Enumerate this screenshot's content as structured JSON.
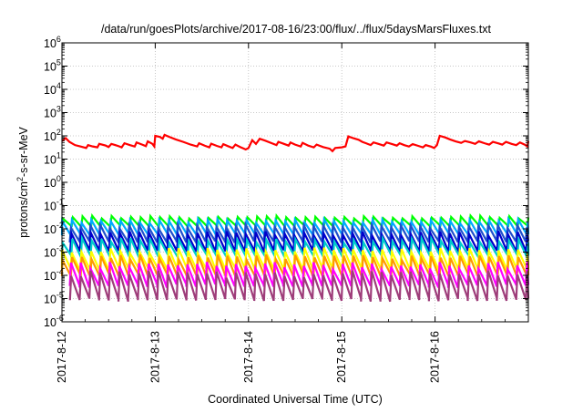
{
  "chart_data": {
    "type": "line",
    "title": "/data/run/goesPlots/archive/2017-08-16/23:00/flux/../flux/5daysMarsFluxes.txt",
    "xlabel": "Coordinated Universal Time (UTC)",
    "ylabel_prefix": "protons/cm",
    "ylabel_sup": "2",
    "ylabel_suffix": "-s-sr-MeV",
    "y_scale": "log",
    "ylim": [
      1e-06,
      1000000.0
    ],
    "y_ticks": [
      {
        "value": 1e-06,
        "base": "10",
        "exp": "-6"
      },
      {
        "value": 1e-05,
        "base": "10",
        "exp": "-5"
      },
      {
        "value": 0.0001,
        "base": "10",
        "exp": "-4"
      },
      {
        "value": 0.001,
        "base": "10",
        "exp": "-3"
      },
      {
        "value": 0.01,
        "base": "10",
        "exp": "-2"
      },
      {
        "value": 0.1,
        "base": "10",
        "exp": "-1"
      },
      {
        "value": 1,
        "base": "10",
        "exp": "0"
      },
      {
        "value": 10.0,
        "base": "10",
        "exp": "1"
      },
      {
        "value": 100.0,
        "base": "10",
        "exp": "2"
      },
      {
        "value": 1000.0,
        "base": "10",
        "exp": "3"
      },
      {
        "value": 10000.0,
        "base": "10",
        "exp": "4"
      },
      {
        "value": 100000.0,
        "base": "10",
        "exp": "5"
      },
      {
        "value": 1000000.0,
        "base": "10",
        "exp": "6"
      }
    ],
    "x_range_days": [
      0,
      5
    ],
    "x_ticks": [
      {
        "day": 0,
        "label": "2017-8-12"
      },
      {
        "day": 1,
        "label": "2017-8-13"
      },
      {
        "day": 2,
        "label": "2017-8-14"
      },
      {
        "day": 3,
        "label": "2017-8-15"
      },
      {
        "day": 4,
        "label": "2017-8-16"
      }
    ],
    "grid": true,
    "series": [
      {
        "color": "#ff0000",
        "points": [
          [
            0,
            60
          ],
          [
            0.04,
            80
          ],
          [
            0.08,
            55
          ],
          [
            0.14,
            40
          ],
          [
            0.2,
            35
          ],
          [
            0.26,
            30
          ],
          [
            0.28,
            40
          ],
          [
            0.33,
            35
          ],
          [
            0.38,
            32
          ],
          [
            0.4,
            45
          ],
          [
            0.47,
            38
          ],
          [
            0.5,
            33
          ],
          [
            0.53,
            45
          ],
          [
            0.6,
            37
          ],
          [
            0.64,
            32
          ],
          [
            0.67,
            48
          ],
          [
            0.73,
            40
          ],
          [
            0.78,
            35
          ],
          [
            0.8,
            52
          ],
          [
            0.86,
            42
          ],
          [
            0.9,
            36
          ],
          [
            0.92,
            58
          ],
          [
            0.97,
            45
          ],
          [
            0.99,
            35
          ],
          [
            1.0,
            100
          ],
          [
            1.05,
            90
          ],
          [
            1.08,
            75
          ],
          [
            1.1,
            110
          ],
          [
            1.15,
            90
          ],
          [
            1.22,
            70
          ],
          [
            1.3,
            55
          ],
          [
            1.38,
            42
          ],
          [
            1.45,
            35
          ],
          [
            1.47,
            48
          ],
          [
            1.53,
            38
          ],
          [
            1.58,
            32
          ],
          [
            1.6,
            46
          ],
          [
            1.66,
            37
          ],
          [
            1.71,
            32
          ],
          [
            1.73,
            44
          ],
          [
            1.78,
            36
          ],
          [
            1.83,
            30
          ],
          [
            1.86,
            42
          ],
          [
            1.91,
            33
          ],
          [
            1.97,
            26
          ],
          [
            2.0,
            30
          ],
          [
            2.04,
            65
          ],
          [
            2.08,
            45
          ],
          [
            2.12,
            75
          ],
          [
            2.18,
            62
          ],
          [
            2.25,
            48
          ],
          [
            2.3,
            40
          ],
          [
            2.32,
            55
          ],
          [
            2.38,
            45
          ],
          [
            2.43,
            38
          ],
          [
            2.45,
            52
          ],
          [
            2.5,
            42
          ],
          [
            2.56,
            35
          ],
          [
            2.58,
            50
          ],
          [
            2.64,
            38
          ],
          [
            2.7,
            32
          ],
          [
            2.73,
            42
          ],
          [
            2.8,
            33
          ],
          [
            2.87,
            28
          ],
          [
            2.9,
            22
          ],
          [
            2.93,
            30
          ],
          [
            3.0,
            32
          ],
          [
            3.04,
            35
          ],
          [
            3.07,
            95
          ],
          [
            3.12,
            80
          ],
          [
            3.18,
            68
          ],
          [
            3.22,
            55
          ],
          [
            3.26,
            48
          ],
          [
            3.31,
            40
          ],
          [
            3.34,
            52
          ],
          [
            3.4,
            44
          ],
          [
            3.45,
            38
          ],
          [
            3.48,
            52
          ],
          [
            3.54,
            44
          ],
          [
            3.59,
            38
          ],
          [
            3.62,
            48
          ],
          [
            3.67,
            40
          ],
          [
            3.72,
            35
          ],
          [
            3.76,
            44
          ],
          [
            3.82,
            37
          ],
          [
            3.87,
            32
          ],
          [
            3.9,
            40
          ],
          [
            3.96,
            34
          ],
          [
            3.99,
            30
          ],
          [
            4.02,
            40
          ],
          [
            4.05,
            100
          ],
          [
            4.11,
            85
          ],
          [
            4.16,
            70
          ],
          [
            4.22,
            58
          ],
          [
            4.28,
            50
          ],
          [
            4.32,
            60
          ],
          [
            4.38,
            52
          ],
          [
            4.43,
            45
          ],
          [
            4.47,
            58
          ],
          [
            4.53,
            48
          ],
          [
            4.58,
            42
          ],
          [
            4.62,
            55
          ],
          [
            4.68,
            47
          ],
          [
            4.72,
            42
          ],
          [
            4.76,
            55
          ],
          [
            4.82,
            45
          ],
          [
            4.87,
            40
          ],
          [
            4.91,
            52
          ],
          [
            4.96,
            42
          ],
          [
            4.99,
            35
          ],
          [
            5.0,
            60
          ]
        ]
      },
      {
        "color": "#00ff00",
        "sawtooth": {
          "base": 0.013,
          "top": 0.032,
          "amp_var": 0.15,
          "phase": 0.0
        }
      },
      {
        "color": "#00aaff",
        "sawtooth": {
          "base": 0.0055,
          "top": 0.022,
          "amp_var": 0.2,
          "phase": 0.01
        }
      },
      {
        "color": "#1f4fcc",
        "sawtooth": {
          "base": 0.0028,
          "top": 0.013,
          "amp_var": 0.2,
          "phase": 0.02
        }
      },
      {
        "color": "#0000cc",
        "sawtooth": {
          "base": 0.0011,
          "top": 0.0065,
          "amp_var": 0.25,
          "phase": 0.015
        }
      },
      {
        "color": "#00cccc",
        "sawtooth": {
          "base": 0.00065,
          "top": 0.0032,
          "amp_var": 0.25,
          "phase": 0.005
        }
      },
      {
        "color": "#ffff00",
        "sawtooth": {
          "base": 0.00018,
          "top": 0.0012,
          "amp_var": 0.3,
          "phase": 0.012
        }
      },
      {
        "color": "#ff9900",
        "sawtooth": {
          "base": 9e-05,
          "top": 0.0006,
          "amp_var": 0.3,
          "phase": 0.008
        }
      },
      {
        "color": "#ff00ff",
        "sawtooth": {
          "base": 3.5e-05,
          "top": 0.00028,
          "amp_var": 0.35,
          "phase": 0.02
        }
      },
      {
        "color": "#9e3d7a",
        "sawtooth": {
          "base": 9e-06,
          "top": 0.00012,
          "amp_var": 0.35,
          "phase": 0.018
        }
      }
    ],
    "sawtooth_period_days": 0.104
  }
}
